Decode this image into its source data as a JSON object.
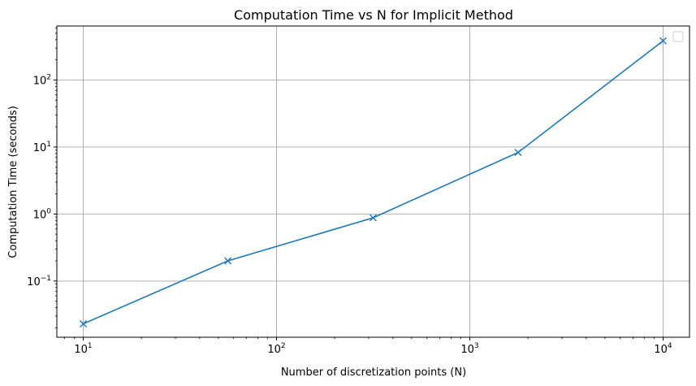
{
  "chart_data": {
    "type": "line",
    "title": "Computation Time vs N for Implicit Method",
    "xlabel": "Number of discretization points (N)",
    "ylabel": "Computation Time (seconds)",
    "xscale": "log",
    "yscale": "log",
    "xlim": [
      7.3,
      13700
    ],
    "ylim": [
      0.0145,
      640
    ],
    "grid": true,
    "legend": {
      "placement": "top-right",
      "entries": []
    },
    "x_ticks": [
      {
        "base": "10",
        "exp": "1",
        "value": 10
      },
      {
        "base": "10",
        "exp": "2",
        "value": 100
      },
      {
        "base": "10",
        "exp": "3",
        "value": 1000
      },
      {
        "base": "10",
        "exp": "4",
        "value": 10000
      }
    ],
    "y_ticks": [
      {
        "base": "10",
        "exp": "−1",
        "value": 0.1
      },
      {
        "base": "10",
        "exp": "0",
        "value": 1
      },
      {
        "base": "10",
        "exp": "1",
        "value": 10
      },
      {
        "base": "10",
        "exp": "2",
        "value": 100
      }
    ],
    "series": [
      {
        "color": "#1f77b4",
        "marker": "x",
        "x": [
          10,
          56,
          316,
          1778,
          10000
        ],
        "y": [
          0.023,
          0.2,
          0.88,
          8.3,
          385
        ]
      }
    ]
  }
}
